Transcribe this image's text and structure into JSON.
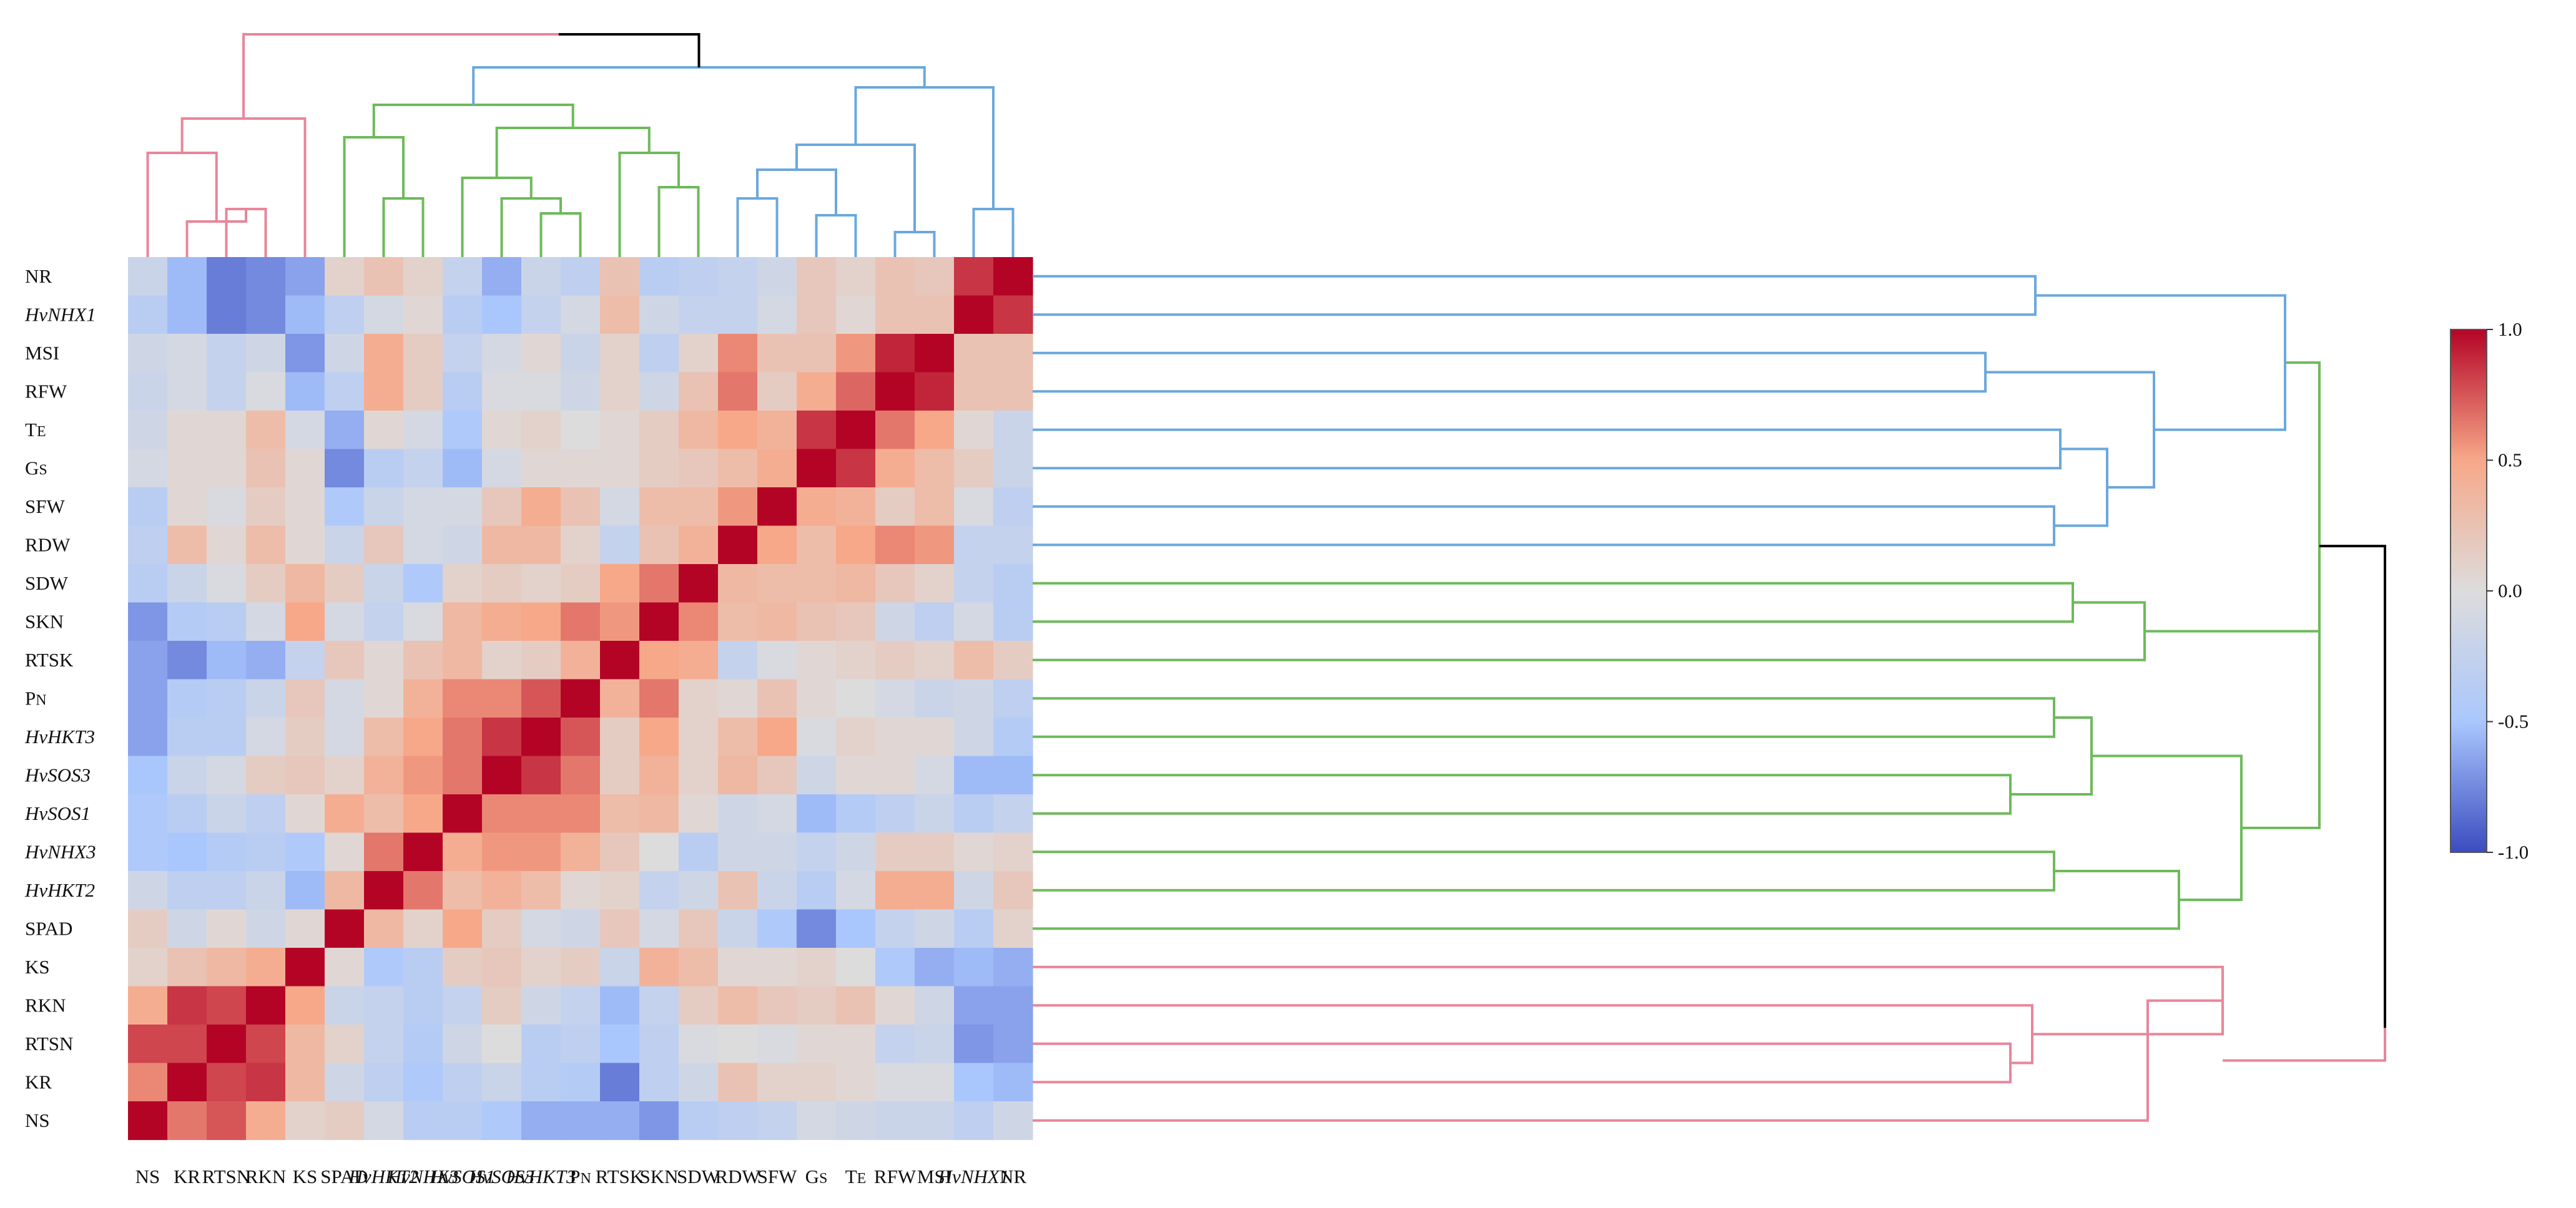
{
  "chart_data": {
    "type": "heatmap",
    "title": "",
    "row_labels": [
      "NR",
      "HvNHX1",
      "MSI",
      "RFW",
      "TE",
      "GS",
      "SFW",
      "RDW",
      "SDW",
      "SKN",
      "RTSK",
      "PN",
      "HvHKT3",
      "HvSOS3",
      "HvSOS1",
      "HvNHX3",
      "HvHKT2",
      "SPAD",
      "KS",
      "RKN",
      "RTSN",
      "KR",
      "NS"
    ],
    "column_labels": [
      "NS",
      "KR",
      "RTSN",
      "RKN",
      "KS",
      "SPAD",
      "HvHKT2",
      "HvNHX3",
      "HvSOS1",
      "HvSOS3",
      "HvHKT3",
      "PN",
      "RTSK",
      "SKN",
      "SDW",
      "RDW",
      "SFW",
      "GS",
      "TE",
      "RFW",
      "MSI",
      "HvNHX1",
      "NR"
    ],
    "italic_labels": [
      "HvNHX1",
      "HvHKT3",
      "HvSOS3",
      "HvSOS1",
      "HvNHX3",
      "HvHKT2"
    ],
    "values": [
      [
        -0.2,
        -0.55,
        -0.8,
        -0.75,
        -0.65,
        0.1,
        0.25,
        0.1,
        -0.25,
        -0.6,
        -0.2,
        -0.3,
        0.25,
        -0.35,
        -0.3,
        -0.25,
        -0.15,
        0.2,
        0.1,
        0.25,
        0.2,
        0.85,
        1.0
      ],
      [
        -0.35,
        -0.55,
        -0.8,
        -0.75,
        -0.55,
        -0.3,
        -0.1,
        0.05,
        -0.35,
        -0.5,
        -0.25,
        -0.1,
        0.3,
        -0.15,
        -0.25,
        -0.25,
        -0.1,
        0.2,
        0.05,
        0.25,
        0.25,
        1.0,
        0.85
      ],
      [
        -0.15,
        -0.1,
        -0.25,
        -0.15,
        -0.7,
        -0.15,
        0.45,
        0.15,
        -0.25,
        -0.1,
        0.05,
        -0.2,
        0.1,
        -0.3,
        0.1,
        0.6,
        0.25,
        0.25,
        0.55,
        0.9,
        1.0,
        0.25,
        0.25
      ],
      [
        -0.2,
        -0.1,
        -0.25,
        -0.05,
        -0.55,
        -0.3,
        0.45,
        0.15,
        -0.35,
        -0.05,
        -0.05,
        -0.15,
        0.1,
        -0.15,
        0.25,
        0.65,
        0.15,
        0.45,
        0.7,
        1.0,
        0.9,
        0.25,
        0.25
      ],
      [
        -0.15,
        0.05,
        0.05,
        0.3,
        -0.1,
        -0.6,
        0.05,
        -0.1,
        -0.45,
        0.05,
        0.1,
        0.0,
        0.05,
        0.15,
        0.35,
        0.5,
        0.4,
        0.85,
        1.0,
        0.65,
        0.5,
        0.05,
        -0.2
      ],
      [
        -0.1,
        0.05,
        0.05,
        0.25,
        0.05,
        -0.75,
        -0.35,
        -0.25,
        -0.55,
        -0.1,
        0.05,
        0.05,
        0.05,
        0.15,
        0.2,
        0.3,
        0.45,
        1.0,
        0.85,
        0.45,
        0.3,
        0.15,
        -0.2
      ],
      [
        -0.35,
        0.05,
        -0.05,
        0.15,
        0.05,
        -0.45,
        -0.2,
        -0.1,
        -0.1,
        0.2,
        0.45,
        0.25,
        -0.1,
        0.3,
        0.3,
        0.55,
        1.0,
        0.45,
        0.4,
        0.15,
        0.3,
        -0.05,
        -0.3
      ],
      [
        -0.3,
        0.3,
        0.05,
        0.3,
        0.05,
        -0.2,
        0.2,
        -0.1,
        -0.15,
        0.35,
        0.35,
        0.1,
        -0.25,
        0.25,
        0.4,
        1.0,
        0.5,
        0.3,
        0.5,
        0.6,
        0.55,
        -0.25,
        -0.25
      ],
      [
        -0.35,
        -0.2,
        -0.05,
        0.15,
        0.35,
        0.15,
        -0.2,
        -0.45,
        0.1,
        0.15,
        0.1,
        0.15,
        0.5,
        0.65,
        1.0,
        0.35,
        0.3,
        0.3,
        0.35,
        0.2,
        0.1,
        -0.25,
        -0.35
      ],
      [
        -0.7,
        -0.4,
        -0.35,
        -0.1,
        0.5,
        -0.1,
        -0.25,
        -0.05,
        0.35,
        0.45,
        0.5,
        0.65,
        0.55,
        1.0,
        0.6,
        0.3,
        0.35,
        0.25,
        0.2,
        -0.15,
        -0.3,
        -0.1,
        -0.35
      ],
      [
        -0.65,
        -0.75,
        -0.55,
        -0.6,
        -0.25,
        0.2,
        0.05,
        0.25,
        0.35,
        0.1,
        0.15,
        0.4,
        1.0,
        0.5,
        0.45,
        -0.25,
        -0.05,
        0.05,
        0.1,
        0.15,
        0.1,
        0.3,
        0.15
      ],
      [
        -0.65,
        -0.4,
        -0.35,
        -0.2,
        0.2,
        -0.1,
        0.05,
        0.4,
        0.6,
        0.6,
        0.75,
        1.0,
        0.4,
        0.65,
        0.1,
        0.05,
        0.25,
        0.05,
        0.0,
        -0.1,
        -0.2,
        -0.15,
        -0.3
      ],
      [
        -0.65,
        -0.35,
        -0.35,
        -0.1,
        0.15,
        -0.1,
        0.3,
        0.5,
        0.65,
        0.85,
        1.0,
        0.75,
        0.15,
        0.5,
        0.1,
        0.3,
        0.5,
        -0.05,
        0.1,
        0.05,
        0.05,
        -0.15,
        -0.4
      ],
      [
        -0.5,
        -0.2,
        -0.1,
        0.15,
        0.2,
        0.1,
        0.4,
        0.55,
        0.65,
        1.0,
        0.85,
        0.65,
        0.15,
        0.4,
        0.1,
        0.35,
        0.2,
        -0.15,
        0.05,
        0.05,
        -0.1,
        -0.55,
        -0.55
      ],
      [
        -0.45,
        -0.35,
        -0.2,
        -0.3,
        0.05,
        0.45,
        0.3,
        0.5,
        1.0,
        0.6,
        0.6,
        0.6,
        0.3,
        0.35,
        0.05,
        -0.15,
        -0.1,
        -0.55,
        -0.4,
        -0.3,
        -0.2,
        -0.35,
        -0.25
      ],
      [
        -0.45,
        -0.5,
        -0.4,
        -0.35,
        -0.45,
        0.05,
        0.65,
        1.0,
        0.45,
        0.55,
        0.55,
        0.4,
        0.2,
        0.0,
        -0.35,
        -0.15,
        -0.15,
        -0.25,
        -0.15,
        0.15,
        0.15,
        0.05,
        0.1
      ],
      [
        -0.15,
        -0.3,
        -0.3,
        -0.2,
        -0.55,
        0.35,
        1.0,
        0.65,
        0.3,
        0.4,
        0.3,
        0.05,
        0.1,
        -0.25,
        -0.15,
        0.25,
        -0.2,
        -0.35,
        -0.1,
        0.45,
        0.45,
        -0.15,
        0.2
      ],
      [
        0.15,
        -0.15,
        0.05,
        -0.15,
        0.05,
        1.0,
        0.35,
        0.1,
        0.5,
        0.15,
        -0.1,
        -0.15,
        0.2,
        -0.1,
        0.2,
        -0.2,
        -0.45,
        -0.75,
        -0.5,
        -0.25,
        -0.15,
        -0.35,
        0.1
      ],
      [
        0.1,
        0.25,
        0.35,
        0.45,
        1.0,
        0.05,
        -0.45,
        -0.35,
        0.15,
        0.2,
        0.1,
        0.15,
        -0.2,
        0.4,
        0.3,
        0.05,
        0.05,
        0.1,
        0.0,
        -0.45,
        -0.6,
        -0.55,
        -0.6
      ],
      [
        0.45,
        0.85,
        0.8,
        1.0,
        0.5,
        -0.2,
        -0.25,
        -0.35,
        -0.25,
        0.15,
        -0.15,
        -0.25,
        -0.55,
        -0.25,
        0.15,
        0.3,
        0.2,
        0.15,
        0.25,
        0.05,
        -0.15,
        -0.65,
        -0.65
      ],
      [
        0.8,
        0.8,
        1.0,
        0.8,
        0.35,
        0.1,
        -0.25,
        -0.4,
        -0.15,
        0.0,
        -0.35,
        -0.3,
        -0.5,
        -0.3,
        -0.05,
        0.0,
        -0.05,
        0.05,
        0.05,
        -0.25,
        -0.2,
        -0.7,
        -0.65
      ],
      [
        0.6,
        1.0,
        0.8,
        0.85,
        0.35,
        -0.15,
        -0.3,
        -0.45,
        -0.3,
        -0.2,
        -0.35,
        -0.4,
        -0.8,
        -0.3,
        -0.15,
        0.25,
        0.1,
        0.1,
        0.05,
        -0.05,
        -0.05,
        -0.5,
        -0.55
      ],
      [
        1.0,
        0.65,
        0.75,
        0.45,
        0.1,
        0.15,
        -0.1,
        -0.35,
        -0.35,
        -0.45,
        -0.6,
        -0.6,
        -0.6,
        -0.7,
        -0.35,
        -0.3,
        -0.25,
        -0.1,
        -0.15,
        -0.2,
        -0.2,
        -0.3,
        -0.15
      ]
    ],
    "value_range": [
      -1.0,
      1.0
    ],
    "colorbar_ticks": [
      "1.0",
      "0.5",
      "0.0",
      "-0.5",
      "-1.0"
    ],
    "colormap": [
      "#3b4cc0",
      "#aac7fd",
      "#dddcdc",
      "#f7a889",
      "#b40426"
    ],
    "cluster_colors": {
      "group_pink": "#e8869a",
      "group_green": "#6dba5a",
      "group_blue": "#6aa8dd",
      "root": "#000000"
    }
  }
}
